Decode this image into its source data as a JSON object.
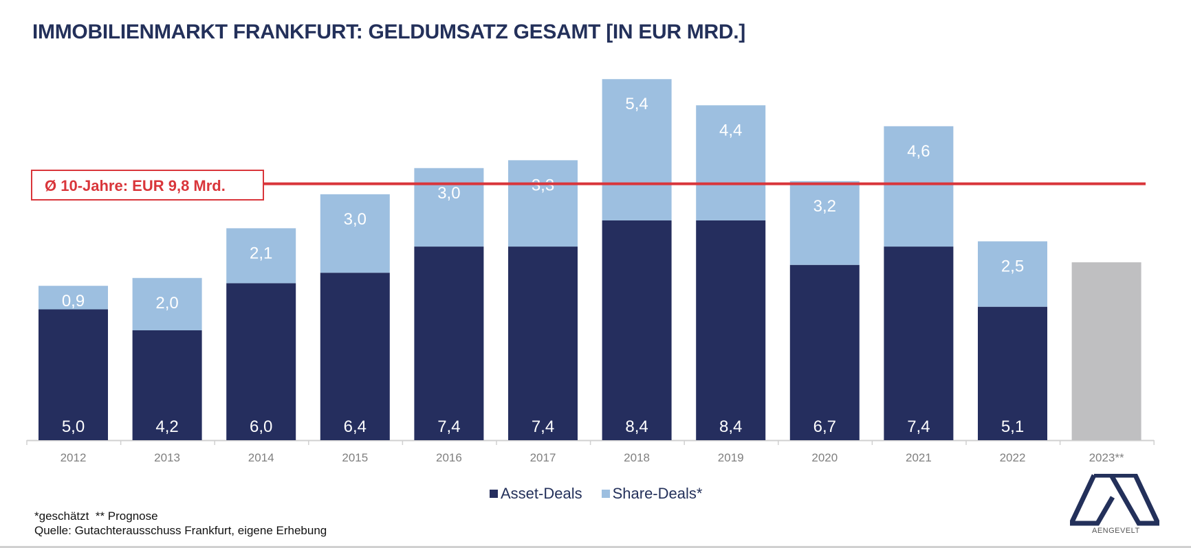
{
  "title": "IMMOBILIENMARKT FRANKFURT: GELDUMSATZ GESAMT [IN EUR MRD.]",
  "average_label": "Ø 10-Jahre: EUR 9,8 Mrd.",
  "legend": {
    "asset": "Asset-Deals",
    "share": "Share-Deals*"
  },
  "footnotes": {
    "line1": "*geschätzt  ** Prognose",
    "line2": "Quelle: Gutachterausschuss Frankfurt, eigene Erhebung"
  },
  "logo_text": "AENGEVELT",
  "colors": {
    "asset": "#252e5e",
    "share": "#9dbfe0",
    "forecast": "#bfbfc1",
    "average_line": "#d9353a",
    "title": "#23305a"
  },
  "chart_data": {
    "type": "bar",
    "stacked": true,
    "title": "IMMOBILIENMARKT FRANKFURT: GELDUMSATZ GESAMT [IN EUR MRD.]",
    "xlabel": "",
    "ylabel": "EUR Mrd.",
    "categories": [
      "2012",
      "2013",
      "2014",
      "2015",
      "2016",
      "2017",
      "2018",
      "2019",
      "2020",
      "2021",
      "2022",
      "2023**"
    ],
    "series": [
      {
        "name": "Asset-Deals",
        "values": [
          5.0,
          4.2,
          6.0,
          6.4,
          7.4,
          7.4,
          8.4,
          8.4,
          6.7,
          7.4,
          5.1,
          null
        ],
        "labels": [
          "5,0",
          "4,2",
          "6,0",
          "6,4",
          "7,4",
          "7,4",
          "8,4",
          "8,4",
          "6,7",
          "7,4",
          "5,1",
          ""
        ]
      },
      {
        "name": "Share-Deals*",
        "values": [
          0.9,
          2.0,
          2.1,
          3.0,
          3.0,
          3.3,
          5.4,
          4.4,
          3.2,
          4.6,
          2.5,
          null
        ],
        "labels": [
          "0,9",
          "2,0",
          "2,1",
          "3,0",
          "3,0",
          "3,3",
          "5,4",
          "4,4",
          "3,2",
          "4,6",
          "2,5",
          ""
        ]
      },
      {
        "name": "Prognose",
        "values": [
          null,
          null,
          null,
          null,
          null,
          null,
          null,
          null,
          null,
          null,
          null,
          6.8
        ],
        "labels": [
          "",
          "",
          "",
          "",
          "",
          "",
          "",
          "",
          "",
          "",
          "",
          ""
        ]
      }
    ],
    "reference_line": {
      "label": "Ø 10-Jahre: EUR 9,8 Mrd.",
      "value": 9.8
    },
    "ylim": [
      0,
      14
    ],
    "grid": false,
    "legend_position": "bottom-center"
  }
}
